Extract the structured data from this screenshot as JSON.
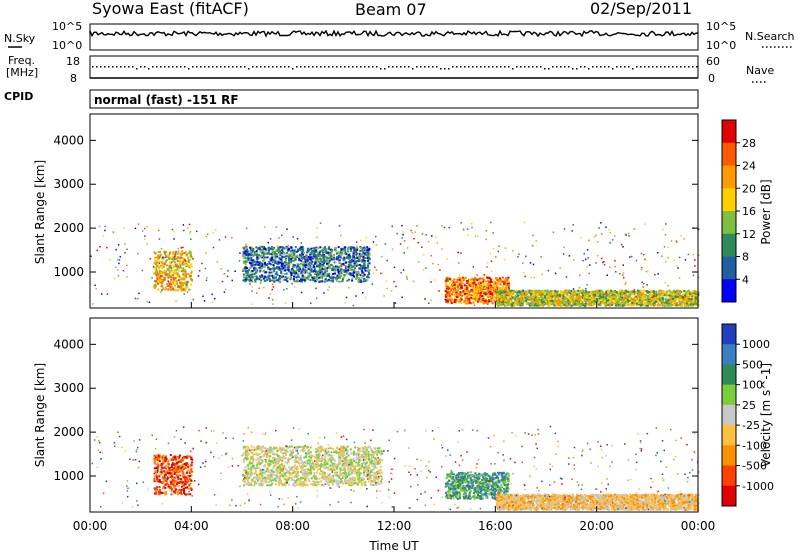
{
  "header": {
    "title": "Syowa East (fitACF)",
    "beam": "Beam 07",
    "date": "02/Sep/2011"
  },
  "top_panels": {
    "nsky_label": "N.Sky",
    "nsearch_label": "N.Search",
    "nsky_ticks": [
      "10^5",
      "10^0"
    ],
    "nsearch_ticks": [
      "10^5",
      "10^0"
    ],
    "freq_label_line1": "Freq.",
    "freq_label_line2": "[MHz]",
    "freq_ticks": [
      "18",
      "8"
    ],
    "nave_label": "Nave",
    "nave_ticks": [
      "60",
      "0"
    ],
    "cpid_label": "CPID",
    "cpid_text": "normal (fast) -151 RF"
  },
  "chart_data": [
    {
      "type": "heatmap",
      "name": "power",
      "ylabel": "Slant Range [km]",
      "yticks": [
        "4000",
        "3000",
        "2000",
        "1000"
      ],
      "ytick_values": [
        4000,
        3000,
        2000,
        1000
      ],
      "ylim": [
        180,
        4600
      ],
      "xlim": [
        0,
        24
      ],
      "colorbar_label": "Power [dB]",
      "colorbar_ticks": [
        "28",
        "24",
        "20",
        "16",
        "12",
        "8",
        "4"
      ],
      "colorbar_colors": [
        "#e00000",
        "#ff5a00",
        "#ff9a00",
        "#ffd000",
        "#7fbf3f",
        "#2e8b57",
        "#2060a0",
        "#0000ff"
      ],
      "echo_regions": [
        {
          "t0": 2.5,
          "t1": 4.0,
          "r0": 600,
          "r1": 1500,
          "level": 20
        },
        {
          "t0": 6.0,
          "t1": 11.0,
          "r0": 800,
          "r1": 1600,
          "level": 10
        },
        {
          "t0": 14.0,
          "t1": 16.5,
          "r0": 300,
          "r1": 900,
          "level": 24
        },
        {
          "t0": 16.0,
          "t1": 24.0,
          "r0": 250,
          "r1": 600,
          "level": 18
        }
      ]
    },
    {
      "type": "heatmap",
      "name": "velocity",
      "ylabel": "Slant Range [km]",
      "yticks": [
        "4000",
        "3000",
        "2000",
        "1000"
      ],
      "ytick_values": [
        4000,
        3000,
        2000,
        1000
      ],
      "ylim": [
        180,
        4600
      ],
      "xlim": [
        0,
        24
      ],
      "xlabel": "Time UT",
      "xticks": [
        "00:00",
        "04:00",
        "08:00",
        "12:00",
        "16:00",
        "20:00",
        "00:00"
      ],
      "xtick_values": [
        0,
        4,
        8,
        12,
        16,
        20,
        24
      ],
      "colorbar_label": "Velocity [m s^-1]",
      "colorbar_ticks": [
        "1000",
        "500",
        "100",
        "25",
        "-25",
        "-100",
        "-500",
        "-1000"
      ],
      "colorbar_colors": [
        "#2040c0",
        "#3a7fbf",
        "#2e8b57",
        "#7ccd3c",
        "#c8c8c8",
        "#ffc040",
        "#ff9000",
        "#ff4000",
        "#e00000"
      ],
      "echo_regions": [
        {
          "t0": 2.5,
          "t1": 4.0,
          "r0": 600,
          "r1": 1500,
          "velocity": -500
        },
        {
          "t0": 6.0,
          "t1": 11.5,
          "r0": 800,
          "r1": 1700,
          "velocity": 0
        },
        {
          "t0": 14.0,
          "t1": 16.5,
          "r0": 500,
          "r1": 1100,
          "velocity": 100
        },
        {
          "t0": 16.0,
          "t1": 24.0,
          "r0": 250,
          "r1": 600,
          "velocity": -100
        }
      ]
    }
  ]
}
